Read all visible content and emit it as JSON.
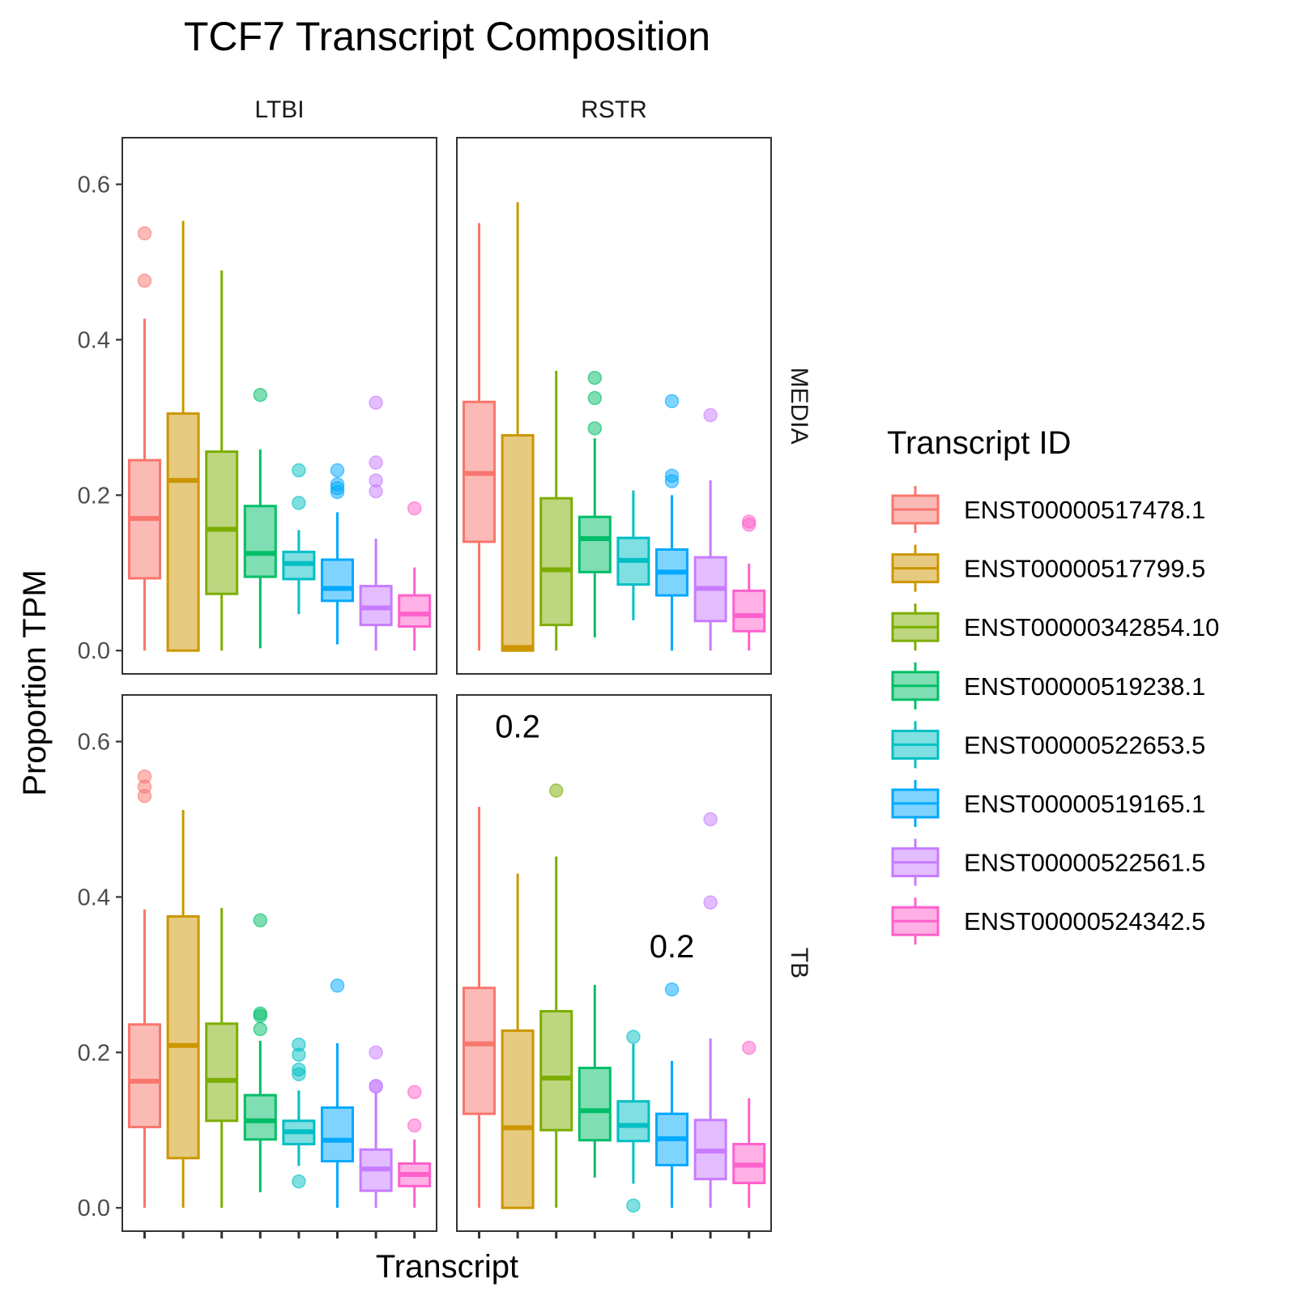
{
  "chart_data": {
    "type": "boxplot",
    "title": "TCF7 Transcript Composition",
    "xlabel": "Transcript",
    "ylabel": "Proportion TPM",
    "ylim": [
      -0.03,
      0.66
    ],
    "yticks": [
      "0.0",
      "0.2",
      "0.4",
      "0.6"
    ],
    "grid": false,
    "legend_position": "right",
    "legend_title": "Transcript ID",
    "columns": [
      "LTBI",
      "RSTR"
    ],
    "rows": [
      "MEDIA",
      "TB"
    ],
    "transcripts": [
      {
        "id": "ENST00000517478.1",
        "color": "#F8766D"
      },
      {
        "id": "ENST00000517799.5",
        "color": "#CD9600"
      },
      {
        "id": "ENST00000342854.10",
        "color": "#7CAE00"
      },
      {
        "id": "ENST00000519238.1",
        "color": "#00BE67"
      },
      {
        "id": "ENST00000522653.5",
        "color": "#00BFC4"
      },
      {
        "id": "ENST00000519165.1",
        "color": "#00A9FF"
      },
      {
        "id": "ENST00000522561.5",
        "color": "#C77CFF"
      },
      {
        "id": "ENST00000524342.5",
        "color": "#FF61CC"
      }
    ],
    "panels": [
      {
        "column": "LTBI",
        "row": "MEDIA",
        "annotations": [],
        "boxes": [
          {
            "lo": 0.0,
            "q1": 0.093,
            "med": 0.17,
            "q3": 0.245,
            "hi": 0.427,
            "out": [
              0.476,
              0.537
            ]
          },
          {
            "lo": 0.0,
            "q1": 0.0,
            "med": 0.219,
            "q3": 0.305,
            "hi": 0.553,
            "out": []
          },
          {
            "lo": 0.0,
            "q1": 0.073,
            "med": 0.156,
            "q3": 0.256,
            "hi": 0.489,
            "out": []
          },
          {
            "lo": 0.003,
            "q1": 0.095,
            "med": 0.125,
            "q3": 0.186,
            "hi": 0.259,
            "out": [
              0.329
            ]
          },
          {
            "lo": 0.047,
            "q1": 0.092,
            "med": 0.112,
            "q3": 0.127,
            "hi": 0.155,
            "out": [
              0.19,
              0.232
            ]
          },
          {
            "lo": 0.008,
            "q1": 0.064,
            "med": 0.08,
            "q3": 0.117,
            "hi": 0.178,
            "out": [
              0.204,
              0.209,
              0.214,
              0.232
            ]
          },
          {
            "lo": 0.0,
            "q1": 0.033,
            "med": 0.055,
            "q3": 0.083,
            "hi": 0.144,
            "out": [
              0.205,
              0.219,
              0.242,
              0.319
            ]
          },
          {
            "lo": 0.0,
            "q1": 0.031,
            "med": 0.047,
            "q3": 0.071,
            "hi": 0.107,
            "out": [
              0.183
            ]
          }
        ]
      },
      {
        "column": "RSTR",
        "row": "MEDIA",
        "annotations": [],
        "boxes": [
          {
            "lo": 0.0,
            "q1": 0.14,
            "med": 0.228,
            "q3": 0.32,
            "hi": 0.55,
            "out": []
          },
          {
            "lo": 0.0,
            "q1": 0.0,
            "med": 0.004,
            "q3": 0.277,
            "hi": 0.577,
            "out": []
          },
          {
            "lo": 0.0,
            "q1": 0.033,
            "med": 0.104,
            "q3": 0.196,
            "hi": 0.36,
            "out": []
          },
          {
            "lo": 0.017,
            "q1": 0.101,
            "med": 0.144,
            "q3": 0.172,
            "hi": 0.273,
            "out": [
              0.286,
              0.325,
              0.351
            ]
          },
          {
            "lo": 0.039,
            "q1": 0.085,
            "med": 0.116,
            "q3": 0.145,
            "hi": 0.206,
            "out": []
          },
          {
            "lo": 0.0,
            "q1": 0.071,
            "med": 0.101,
            "q3": 0.13,
            "hi": 0.2,
            "out": [
              0.218,
              0.225,
              0.321
            ]
          },
          {
            "lo": 0.0,
            "q1": 0.038,
            "med": 0.08,
            "q3": 0.12,
            "hi": 0.219,
            "out": [
              0.303
            ]
          },
          {
            "lo": 0.0,
            "q1": 0.025,
            "med": 0.045,
            "q3": 0.077,
            "hi": 0.112,
            "out": [
              0.162,
              0.166
            ]
          }
        ]
      },
      {
        "column": "LTBI",
        "row": "TB",
        "annotations": [],
        "boxes": [
          {
            "lo": 0.0,
            "q1": 0.104,
            "med": 0.163,
            "q3": 0.236,
            "hi": 0.384,
            "out": [
              0.53,
              0.542,
              0.555
            ]
          },
          {
            "lo": 0.0,
            "q1": 0.064,
            "med": 0.209,
            "q3": 0.375,
            "hi": 0.512,
            "out": []
          },
          {
            "lo": 0.0,
            "q1": 0.112,
            "med": 0.164,
            "q3": 0.237,
            "hi": 0.386,
            "out": []
          },
          {
            "lo": 0.02,
            "q1": 0.088,
            "med": 0.112,
            "q3": 0.145,
            "hi": 0.215,
            "out": [
              0.23,
              0.247,
              0.25,
              0.37
            ]
          },
          {
            "lo": 0.054,
            "q1": 0.082,
            "med": 0.098,
            "q3": 0.112,
            "hi": 0.151,
            "out": [
              0.034,
              0.172,
              0.178,
              0.197,
              0.21
            ]
          },
          {
            "lo": 0.0,
            "q1": 0.06,
            "med": 0.087,
            "q3": 0.129,
            "hi": 0.212,
            "out": [
              0.286
            ]
          },
          {
            "lo": 0.0,
            "q1": 0.022,
            "med": 0.05,
            "q3": 0.075,
            "hi": 0.148,
            "out": [
              0.156,
              0.157,
              0.2
            ]
          },
          {
            "lo": 0.0,
            "q1": 0.028,
            "med": 0.043,
            "q3": 0.057,
            "hi": 0.088,
            "out": [
              0.106,
              0.149
            ]
          }
        ]
      },
      {
        "column": "RSTR",
        "row": "TB",
        "annotations": [
          {
            "text": "0.2",
            "x": 2,
            "y": 0.62
          },
          {
            "text": "0.2",
            "x": 6,
            "y": 0.337
          }
        ],
        "boxes": [
          {
            "lo": 0.0,
            "q1": 0.121,
            "med": 0.211,
            "q3": 0.283,
            "hi": 0.516,
            "out": []
          },
          {
            "lo": 0.0,
            "q1": 0.0,
            "med": 0.103,
            "q3": 0.228,
            "hi": 0.43,
            "out": []
          },
          {
            "lo": 0.0,
            "q1": 0.1,
            "med": 0.167,
            "q3": 0.253,
            "hi": 0.452,
            "out": [
              0.537
            ]
          },
          {
            "lo": 0.039,
            "q1": 0.087,
            "med": 0.125,
            "q3": 0.18,
            "hi": 0.287,
            "out": []
          },
          {
            "lo": 0.031,
            "q1": 0.086,
            "med": 0.106,
            "q3": 0.137,
            "hi": 0.211,
            "out": [
              0.003,
              0.22
            ]
          },
          {
            "lo": 0.0,
            "q1": 0.055,
            "med": 0.089,
            "q3": 0.121,
            "hi": 0.189,
            "out": [
              0.281
            ]
          },
          {
            "lo": 0.0,
            "q1": 0.037,
            "med": 0.073,
            "q3": 0.113,
            "hi": 0.218,
            "out": [
              0.393,
              0.5
            ]
          },
          {
            "lo": 0.0,
            "q1": 0.032,
            "med": 0.055,
            "q3": 0.082,
            "hi": 0.141,
            "out": [
              0.206
            ]
          }
        ]
      }
    ]
  }
}
